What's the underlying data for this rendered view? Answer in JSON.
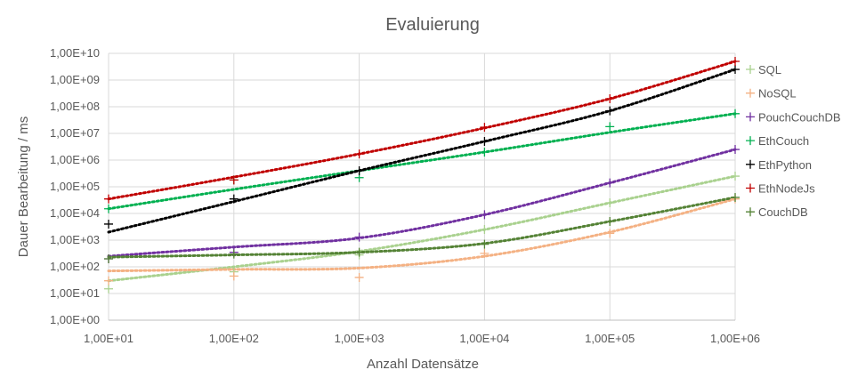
{
  "chart_data": {
    "type": "scatter",
    "title": "Evaluierung",
    "xlabel": "Anzahl Datensätze",
    "ylabel": "Dauer Bearbeitung / ms",
    "x_scale": "log",
    "y_scale": "log",
    "xlim": [
      10,
      1000000
    ],
    "ylim": [
      1,
      10000000000
    ],
    "x_ticks": [
      10,
      100,
      1000,
      10000,
      100000,
      1000000
    ],
    "x_tick_labels": [
      "1,00E+01",
      "1,00E+02",
      "1,00E+03",
      "1,00E+04",
      "1,00E+05",
      "1,00E+06"
    ],
    "y_ticks": [
      1,
      10,
      100,
      1000,
      10000,
      100000,
      1000000,
      10000000,
      100000000,
      1000000000,
      10000000000
    ],
    "y_tick_labels": [
      "1,00E+00",
      "1,00E+01",
      "1,00E+02",
      "1,00E+03",
      "1,00E+04",
      "1,00E+05",
      "1,00E+06",
      "1,00E+07",
      "1,00E+08",
      "1,00E+09",
      "1,00E+10"
    ],
    "grid": true,
    "legend_position": "right",
    "markers": "plus",
    "trendlines": "dotted",
    "series": [
      {
        "name": "SQL",
        "color": "#a9d18e",
        "x": [
          10,
          100,
          1000,
          10000,
          100000,
          1000000
        ],
        "y": [
          15,
          65,
          280,
          2500,
          25000,
          250000
        ],
        "trend": [
          30,
          100,
          380,
          2500,
          25000,
          250000
        ]
      },
      {
        "name": "NoSQL",
        "color": "#f4b183",
        "x": [
          10,
          100,
          1000,
          10000,
          100000,
          1000000
        ],
        "y": [
          30,
          45,
          40,
          320,
          1800,
          35000
        ],
        "trend": [
          70,
          80,
          90,
          250,
          2000,
          35000
        ]
      },
      {
        "name": "PouchCouchDB",
        "color": "#7030a0",
        "x": [
          10,
          100,
          1000,
          10000,
          100000,
          1000000
        ],
        "y": [
          200,
          350,
          1300,
          9000,
          140000,
          2500000
        ],
        "trend": [
          250,
          550,
          1200,
          9000,
          140000,
          2500000
        ]
      },
      {
        "name": "EthCouch",
        "color": "#00b050",
        "x": [
          10,
          100,
          1000,
          10000,
          100000,
          1000000
        ],
        "y": [
          15000,
          180000,
          220000,
          2000000,
          18000000,
          55000000
        ],
        "trend": [
          15000,
          80000,
          400000,
          2000000,
          11000000,
          55000000
        ]
      },
      {
        "name": "EthPython",
        "color": "#000000",
        "x": [
          10,
          100,
          1000,
          10000,
          100000,
          1000000
        ],
        "y": [
          4000,
          35000,
          400000,
          5000000,
          70000000,
          2500000000
        ],
        "trend": [
          2000,
          28000,
          400000,
          5000000,
          70000000,
          2500000000
        ]
      },
      {
        "name": "EthNodeJs",
        "color": "#c00000",
        "x": [
          10,
          100,
          1000,
          10000,
          100000,
          1000000
        ],
        "y": [
          35000,
          180000,
          1700000,
          17000000,
          200000000,
          5000000000
        ],
        "trend": [
          35000,
          230000,
          1700000,
          16000000,
          200000000,
          5000000000
        ]
      },
      {
        "name": "CouchDB",
        "color": "#548235",
        "x": [
          10,
          100,
          1000,
          10000,
          100000,
          1000000
        ],
        "y": [
          200,
          300,
          350,
          700,
          5000,
          40000
        ],
        "trend": [
          230,
          280,
          350,
          750,
          5000,
          40000
        ]
      }
    ]
  }
}
